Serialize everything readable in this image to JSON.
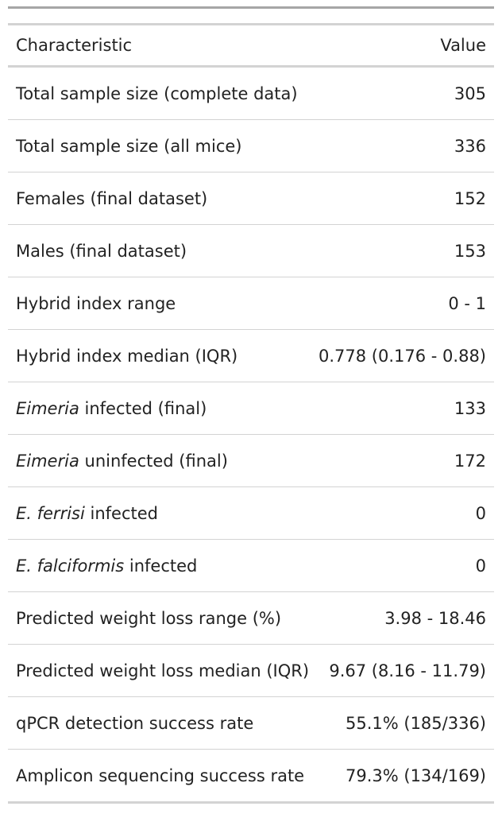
{
  "header": {
    "characteristic": "Characteristic",
    "value": "Value"
  },
  "rows": [
    {
      "italic": "",
      "label": "Total sample size (complete data)",
      "value": "305"
    },
    {
      "italic": "",
      "label": "Total sample size (all mice)",
      "value": "336"
    },
    {
      "italic": "",
      "label": "Females (final dataset)",
      "value": "152"
    },
    {
      "italic": "",
      "label": "Males (final dataset)",
      "value": "153"
    },
    {
      "italic": "",
      "label": "Hybrid index range",
      "value": "0 - 1"
    },
    {
      "italic": "",
      "label": "Hybrid index median (IQR)",
      "value": "0.778 (0.176 - 0.88)"
    },
    {
      "italic": "Eimeria",
      "label": " infected (final)",
      "value": "133"
    },
    {
      "italic": "Eimeria",
      "label": " uninfected (final)",
      "value": "172"
    },
    {
      "italic": "E. ferrisi",
      "label": " infected",
      "value": "0"
    },
    {
      "italic": "E. falciformis",
      "label": " infected",
      "value": "0"
    },
    {
      "italic": "",
      "label": "Predicted weight loss range (%)",
      "value": "3.98 - 18.46"
    },
    {
      "italic": "",
      "label": "Predicted weight loss median (IQR)",
      "value": "9.67 (8.16 - 11.79)"
    },
    {
      "italic": "",
      "label": "qPCR detection success rate",
      "value": "55.1% (185/336)"
    },
    {
      "italic": "",
      "label": "Amplicon sequencing success rate",
      "value": "79.3% (134/169)"
    }
  ]
}
